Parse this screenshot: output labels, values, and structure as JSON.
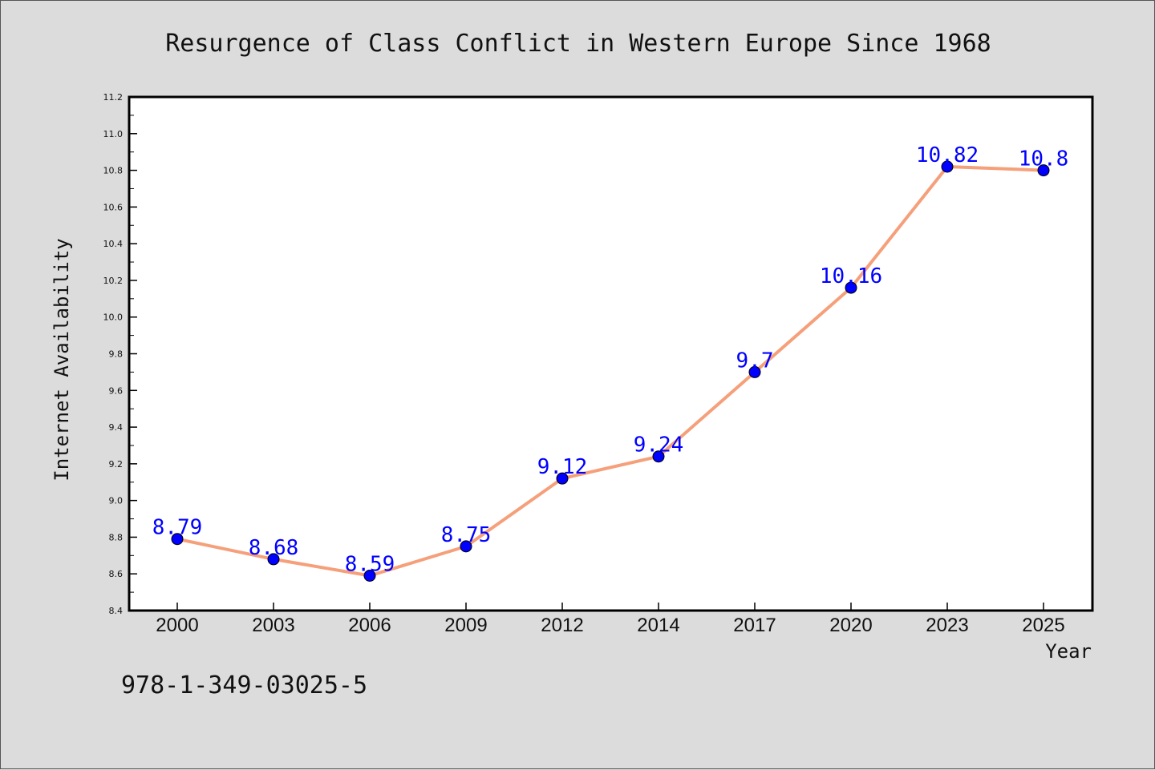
{
  "chart_data": {
    "type": "line",
    "title": "Resurgence of Class Conflict in Western Europe Since 1968",
    "xlabel": "Year",
    "ylabel": "Internet Availability",
    "categories": [
      "2000",
      "2003",
      "2006",
      "2009",
      "2012",
      "2014",
      "2017",
      "2020",
      "2023",
      "2025"
    ],
    "series": [
      {
        "values": [
          8.79,
          8.68,
          8.59,
          8.75,
          9.12,
          9.24,
          9.7,
          10.16,
          10.82,
          10.8
        ],
        "data_labels": [
          "8.79",
          "8.68",
          "8.59",
          "8.75",
          "9.12",
          "9.24",
          "9.7",
          "10.16",
          "10.82",
          "10.8"
        ],
        "line_color": "#f5a07a",
        "marker_color": "#0000ff"
      }
    ],
    "ylim": [
      8.4,
      11.2
    ],
    "yticks": [
      "8.4",
      "8.6",
      "8.8",
      "9.0",
      "9.2",
      "9.4",
      "9.6",
      "9.8",
      "10.0",
      "10.2",
      "10.4",
      "10.6",
      "10.8",
      "11.0",
      "11.2"
    ],
    "grid": false,
    "legend": "none"
  },
  "footer": {
    "code": "978-1-349-03025-5"
  },
  "colors": {
    "background": "#dcdcdc",
    "plot_background": "#ffffff",
    "line": "#f5a07a",
    "marker": "#0000ff",
    "data_label": "#0000ff"
  }
}
